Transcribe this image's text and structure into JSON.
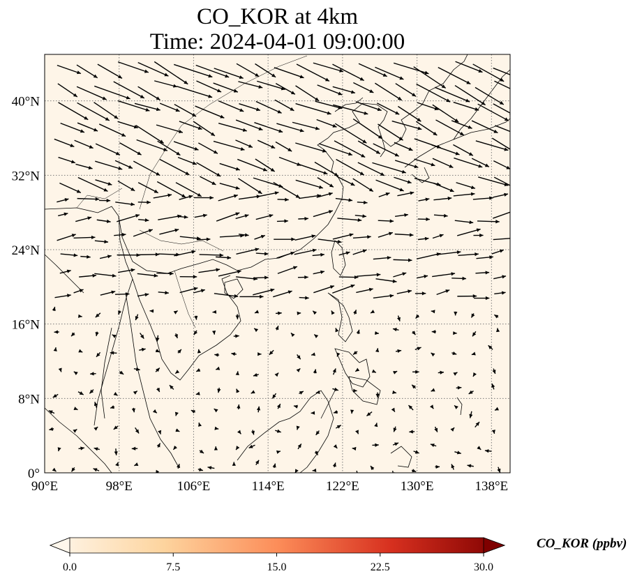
{
  "title": "CO_KOR at 4km",
  "subtitle": "Time: 2024-04-01 09:00:00",
  "lon_ticks": [
    "90°E",
    "98°E",
    "106°E",
    "114°E",
    "122°E",
    "130°E",
    "138°E"
  ],
  "lat_ticks": [
    "0°",
    "8°N",
    "16°N",
    "24°N",
    "32°N",
    "40°N"
  ],
  "colorbar": {
    "label": "CO_KOR (ppbv)",
    "ticks": [
      "0.0",
      "7.5",
      "15.0",
      "22.5",
      "30.0"
    ],
    "range": [
      0,
      30
    ],
    "extend": "both",
    "colormap": [
      "#fff7ec",
      "#fdd49e",
      "#fc8d59",
      "#d7301f",
      "#7f0000"
    ]
  },
  "map": {
    "lon_range": [
      90,
      140
    ],
    "lat_range": [
      0,
      45
    ],
    "field_color": "#fef5e8",
    "gridlines": "dotted"
  }
}
